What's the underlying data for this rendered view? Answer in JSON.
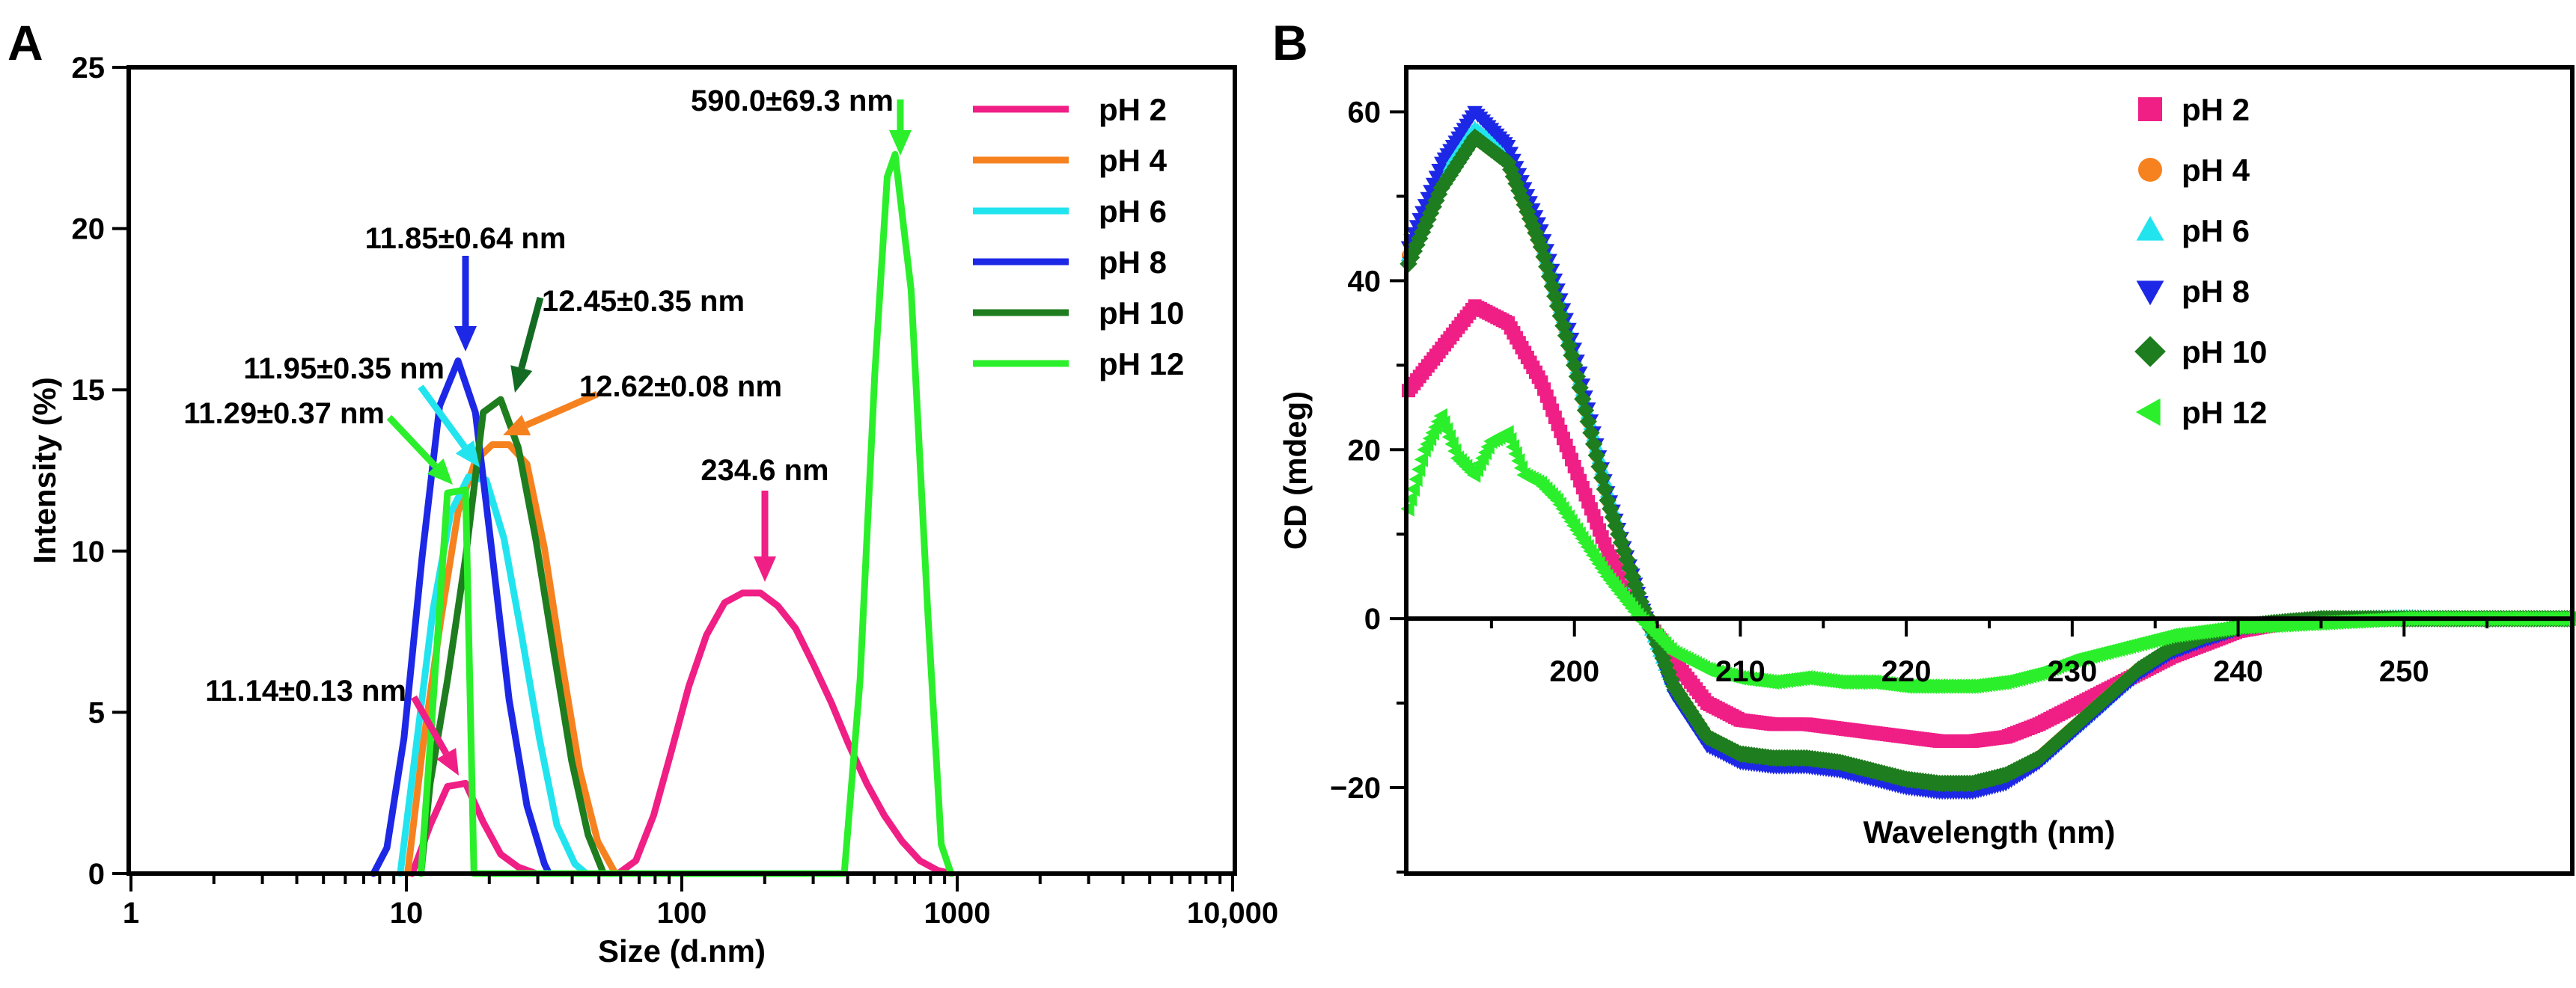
{
  "colors": {
    "pH2": "#ef1f86",
    "pH4": "#f6821f",
    "pH6": "#22e4ee",
    "pH8": "#1d27e6",
    "pH10": "#1e7d1e",
    "pH12": "#2bef2b",
    "pH10_arrow": "#136b23"
  },
  "chart_data": [
    {
      "panel": "A",
      "type": "line",
      "xscale": "log",
      "xlabel": "Size (d.nm)",
      "ylabel": "Intensity (%)",
      "xlim": [
        1,
        10000
      ],
      "ylim": [
        0,
        25
      ],
      "xticks": [
        1,
        10,
        100,
        1000,
        10000
      ],
      "xtick_labels": [
        "1",
        "10",
        "100",
        "1000",
        "10,000"
      ],
      "yticks": [
        0,
        5,
        10,
        15,
        20,
        25
      ],
      "ytick_labels": [
        "0",
        "5",
        "10",
        "15",
        "20",
        "25"
      ],
      "legend_position": "top-right",
      "series": [
        {
          "name": "pH 2",
          "color_key": "pH2",
          "x": [
            10.5,
            12.2,
            14.1,
            16.4,
            19,
            22,
            25.5,
            29.6,
            34.4,
            58.8,
            68.1,
            79,
            91.7,
            106,
            123,
            143,
            166,
            193,
            223,
            259,
            300,
            349,
            404,
            469,
            544,
            631,
            732,
            849,
            955
          ],
          "y": [
            0,
            1.5,
            2.7,
            2.8,
            1.6,
            0.6,
            0.2,
            0,
            0,
            0,
            0.4,
            1.8,
            3.8,
            5.8,
            7.4,
            8.4,
            8.7,
            8.7,
            8.3,
            7.6,
            6.5,
            5.3,
            4.0,
            2.8,
            1.8,
            1.0,
            0.4,
            0.1,
            0
          ]
        },
        {
          "name": "pH 4",
          "color_key": "pH4",
          "x": [
            10.1,
            11.5,
            13.3,
            15.4,
            17.8,
            20.5,
            23.6,
            27.4,
            31.7,
            36.8,
            42.6,
            49.5,
            57.4
          ],
          "y": [
            0,
            4.0,
            7.8,
            11.2,
            12.8,
            13.3,
            13.3,
            12.7,
            10.1,
            6.5,
            3.2,
            1.0,
            0
          ]
        },
        {
          "name": "pH 6",
          "color_key": "pH6",
          "x": [
            9.5,
            10.8,
            12.5,
            14.5,
            16.8,
            19.5,
            22.6,
            26.2,
            30.4,
            35.2,
            40.9,
            45
          ],
          "y": [
            0,
            3.8,
            8.2,
            11.2,
            12.3,
            12.2,
            10.4,
            7.4,
            4.2,
            1.5,
            0.3,
            0
          ]
        },
        {
          "name": "pH 8",
          "color_key": "pH8",
          "x": [
            7.6,
            8.5,
            9.8,
            11.4,
            13.2,
            15.4,
            17.8,
            20.5,
            23.6,
            27.4,
            31.7,
            33
          ],
          "y": [
            0,
            0.8,
            4.2,
            9.8,
            14.5,
            15.9,
            14.3,
            9.9,
            5.4,
            2.1,
            0.3,
            0
          ]
        },
        {
          "name": "pH 10",
          "color_key": "pH10",
          "x": [
            11.3,
            12.2,
            14.1,
            16.4,
            19,
            22,
            25.5,
            29.6,
            34.4,
            39.8,
            45.7,
            52
          ],
          "y": [
            0,
            2.8,
            6.0,
            9.8,
            14.3,
            14.7,
            13.2,
            10.3,
            6.8,
            3.5,
            1.2,
            0
          ]
        },
        {
          "name": "pH 12",
          "color_key": "pH12",
          "x": [
            11.3,
            12.2,
            14.1,
            16.4,
            17.6,
            389,
            444,
            502,
            557,
            595,
            680,
            782,
            875,
            950
          ],
          "y": [
            0,
            4.0,
            11.8,
            11.9,
            0,
            0,
            6.0,
            15.5,
            21.6,
            22.3,
            18.1,
            8.1,
            0.9,
            0
          ]
        }
      ],
      "annotations": [
        {
          "label": "590.0±69.3 nm",
          "color_key": "pH12"
        },
        {
          "label": "11.85±0.64 nm",
          "color_key": "pH8"
        },
        {
          "label": "12.45±0.35 nm",
          "color_key": "pH10_arrow"
        },
        {
          "label": "11.95±0.35 nm",
          "color_key": "pH6"
        },
        {
          "label": "12.62±0.08 nm",
          "color_key": "pH4"
        },
        {
          "label": "11.29±0.37 nm",
          "color_key": "pH12"
        },
        {
          "label": "234.6 nm",
          "color_key": "pH2"
        },
        {
          "label": "11.14±0.13 nm",
          "color_key": "pH2"
        }
      ]
    },
    {
      "panel": "B",
      "type": "scatter",
      "xlabel": "Wavelength (nm)",
      "ylabel": "CD (mdeg)",
      "xlim": [
        190,
        260
      ],
      "ylim": [
        -30,
        65
      ],
      "xticks": [
        200,
        210,
        220,
        230,
        240,
        250
      ],
      "xtick_labels": [
        "200",
        "210",
        "220",
        "230",
        "240",
        "250"
      ],
      "yticks": [
        -20,
        0,
        20,
        40,
        60
      ],
      "ytick_labels": [
        "−20",
        "0",
        "20",
        "40",
        "60"
      ],
      "legend_position": "top-right",
      "series": [
        {
          "name": "pH 2",
          "marker": "square",
          "color_key": "pH2",
          "x": [
            190,
            192,
            194,
            196,
            198,
            200,
            202,
            204,
            206,
            208,
            210,
            212,
            214,
            216,
            218,
            220,
            222,
            224,
            226,
            228,
            230,
            232,
            234,
            236,
            238,
            240,
            242,
            245,
            250,
            255,
            260
          ],
          "y": [
            27,
            32,
            37,
            35,
            28,
            18,
            8,
            1,
            -5,
            -10,
            -12,
            -12.5,
            -12.5,
            -13,
            -13.5,
            -14,
            -14.5,
            -14.5,
            -14,
            -12.5,
            -10.5,
            -8.5,
            -6.5,
            -4.5,
            -3,
            -1.5,
            -0.8,
            0,
            0,
            0,
            0
          ]
        },
        {
          "name": "pH 4",
          "marker": "circle",
          "color_key": "pH4",
          "x": [
            190,
            192,
            194,
            196,
            198,
            200,
            202,
            204,
            206,
            208,
            210,
            212,
            214,
            216,
            218,
            220,
            222,
            224,
            226,
            228,
            230,
            232,
            234,
            236,
            238,
            240,
            242,
            245,
            250,
            255,
            260
          ],
          "y": [
            43,
            52,
            57,
            54,
            44,
            30,
            14,
            2,
            -8,
            -14,
            -16,
            -16.5,
            -16.5,
            -17,
            -18,
            -19,
            -19.5,
            -19.5,
            -18.5,
            -16.5,
            -13,
            -9.5,
            -6,
            -3.5,
            -2,
            -1,
            -0.5,
            0,
            0,
            0,
            0
          ]
        },
        {
          "name": "pH 6",
          "marker": "triangle-up",
          "color_key": "pH6",
          "x": [
            190,
            192,
            194,
            196,
            198,
            200,
            202,
            204,
            206,
            208,
            210,
            212,
            214,
            216,
            218,
            220,
            222,
            224,
            226,
            228,
            230,
            232,
            234,
            236,
            238,
            240,
            242,
            245,
            250,
            255,
            260
          ],
          "y": [
            43,
            53,
            58,
            55,
            45,
            31,
            15,
            2,
            -8,
            -14,
            -16.5,
            -17,
            -17,
            -17.5,
            -18.5,
            -19,
            -19.5,
            -19.5,
            -18.5,
            -16.5,
            -13,
            -9.5,
            -6,
            -3.5,
            -2,
            -1,
            -0.5,
            0,
            0.2,
            0,
            0
          ]
        },
        {
          "name": "pH 8",
          "marker": "triangle-down",
          "color_key": "pH8",
          "x": [
            190,
            192,
            194,
            196,
            198,
            200,
            202,
            204,
            206,
            208,
            210,
            212,
            214,
            216,
            218,
            220,
            222,
            224,
            226,
            228,
            230,
            232,
            234,
            236,
            238,
            240,
            242,
            245,
            250,
            255,
            260
          ],
          "y": [
            44,
            54,
            60,
            56,
            46,
            32,
            15,
            2,
            -9,
            -15,
            -17,
            -17.5,
            -17.5,
            -18,
            -19,
            -20,
            -20.5,
            -20.5,
            -19.5,
            -17,
            -13.5,
            -10,
            -6.5,
            -4,
            -2.5,
            -1.2,
            -0.6,
            0,
            0,
            0,
            0
          ]
        },
        {
          "name": "pH 10",
          "marker": "diamond",
          "color_key": "pH10",
          "x": [
            190,
            192,
            194,
            196,
            198,
            200,
            202,
            204,
            206,
            208,
            210,
            212,
            214,
            216,
            218,
            220,
            222,
            224,
            226,
            228,
            230,
            232,
            234,
            236,
            238,
            240,
            242,
            245,
            250,
            255,
            260
          ],
          "y": [
            42,
            51,
            57,
            54,
            44,
            30,
            14,
            2,
            -8,
            -14,
            -16,
            -16.5,
            -16.5,
            -17,
            -18,
            -19,
            -19.5,
            -19.5,
            -18.5,
            -16.5,
            -13,
            -9.5,
            -6,
            -3.5,
            -2,
            -1,
            -0.5,
            0,
            0,
            0,
            0
          ]
        },
        {
          "name": "pH 12",
          "marker": "triangle-left",
          "color_key": "pH12",
          "x": [
            190,
            191,
            192,
            193,
            194,
            195,
            196,
            197,
            198,
            199,
            200,
            202,
            204,
            206,
            208,
            210,
            212,
            214,
            216,
            218,
            220,
            222,
            224,
            226,
            228,
            230,
            232,
            234,
            236,
            238,
            240,
            245,
            250,
            255,
            260
          ],
          "y": [
            13,
            20,
            24,
            19,
            17,
            21,
            22,
            17,
            16,
            14,
            11,
            5,
            0,
            -4,
            -6,
            -7,
            -7.5,
            -7,
            -7.5,
            -7.5,
            -8,
            -8,
            -8,
            -7.5,
            -6.5,
            -5,
            -4,
            -3,
            -2,
            -1.5,
            -1,
            -0.5,
            0,
            0,
            0
          ]
        }
      ]
    }
  ]
}
